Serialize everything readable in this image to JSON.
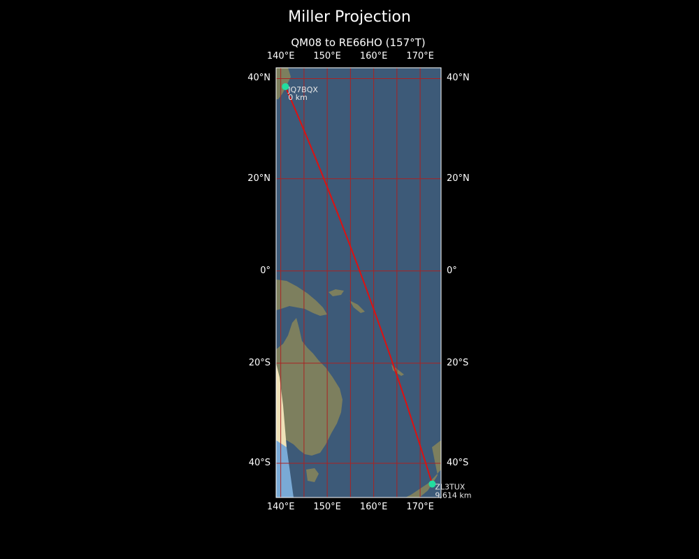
{
  "title": "Miller Projection",
  "subtitle": "QM08 to RE66HO (157°T)",
  "ticks": {
    "lon": [
      {
        "lon": 140,
        "label": "140°E"
      },
      {
        "lon": 150,
        "label": "150°E"
      },
      {
        "lon": 160,
        "label": "160°E"
      },
      {
        "lon": 170,
        "label": "170°E"
      }
    ],
    "lat": [
      {
        "lat": 40,
        "label": "40°N"
      },
      {
        "lat": 20,
        "label": "20°N"
      },
      {
        "lat": 0,
        "label": "0°"
      },
      {
        "lat": -20,
        "label": "20°S"
      },
      {
        "lat": -40,
        "label": "40°S"
      }
    ]
  },
  "extent": {
    "lon_min": 139,
    "lon_max": 174.5,
    "lat_min": -46.2,
    "lat_max": 42
  },
  "route": {
    "start": {
      "call": "JQ7BQX",
      "dist": "0 km",
      "lat": 38.5,
      "lon": 141
    },
    "end": {
      "call": "ZL3TUX",
      "dist": "9,614 km",
      "lat": -43.8,
      "lon": 172.6
    },
    "color": "#dd1111",
    "marker_color": "#22dda0"
  },
  "colors": {
    "ocean": "#3d5a78",
    "land": "#7d7f5e",
    "grid": "#aa2222"
  }
}
